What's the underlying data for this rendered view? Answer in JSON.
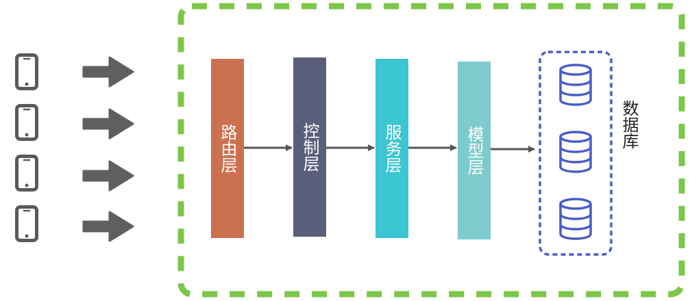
{
  "layers": [
    {
      "id": "router",
      "label": "路由层",
      "color": "#cc7150"
    },
    {
      "id": "control",
      "label": "控制层",
      "color": "#5b5e7a"
    },
    {
      "id": "service",
      "label": "服务层",
      "color": "#3cc5d2"
    },
    {
      "id": "model",
      "label": "模型层",
      "color": "#7ecbcd"
    }
  ],
  "database": {
    "label": "数据库",
    "icon_count": 3,
    "icon_color": "#4a5cc6"
  },
  "clients": {
    "device_icon": "smartphone-icon",
    "count": 4,
    "color": "#5a5a5a"
  },
  "colors": {
    "outer_frame": "#7cc64a",
    "db_border": "#4a5cc6",
    "arrow": "#555555",
    "client_arrow": "#5f5f5f"
  }
}
